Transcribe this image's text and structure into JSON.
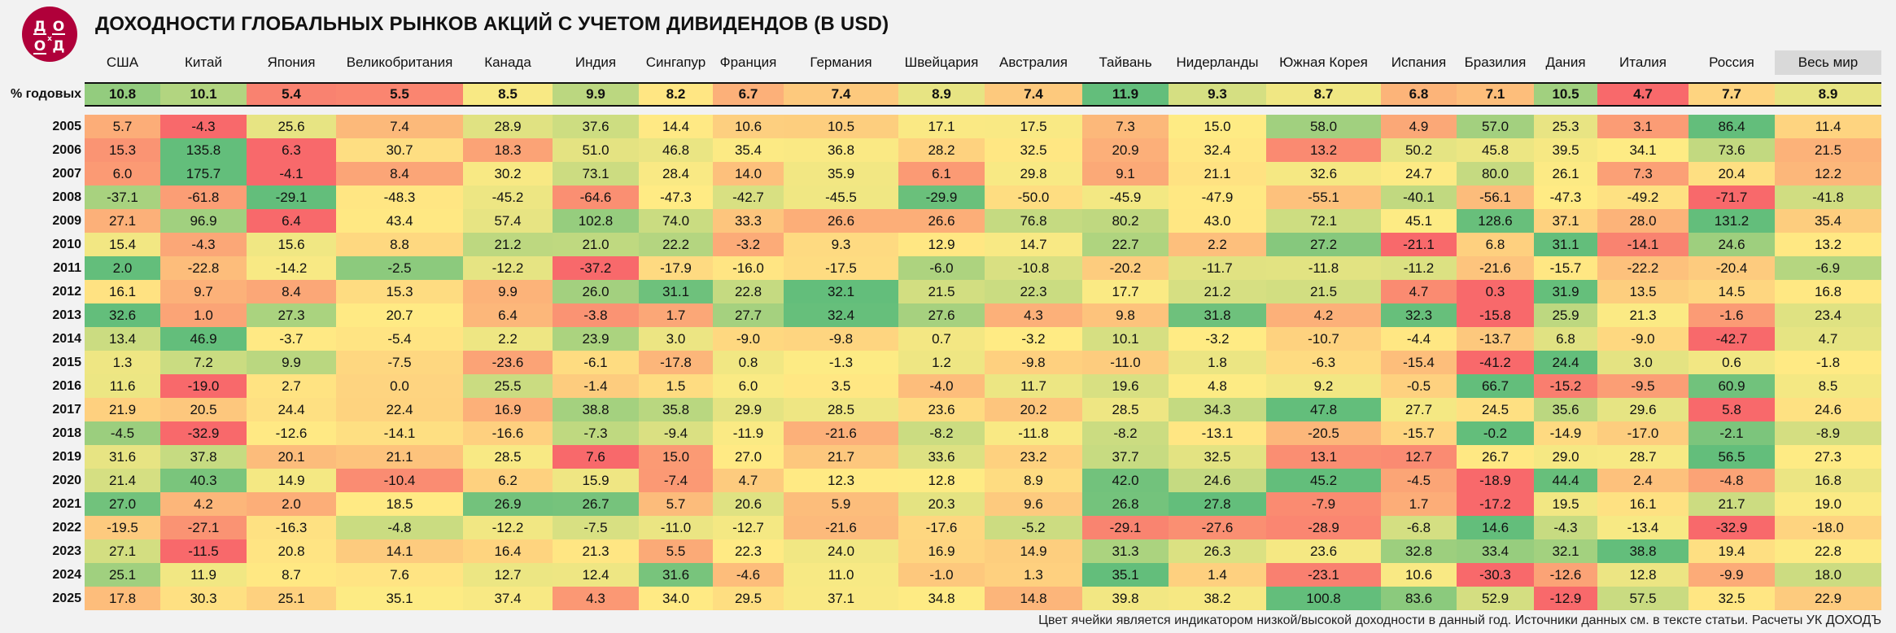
{
  "title": "ДОХОДНОСТИ ГЛОБАЛЬНЫХ РЫНКОВ АКЦИЙ С УЧЕТОМ ДИВИДЕНДОВ (В USD)",
  "logo_text": "ДО ОД",
  "footer": "Цвет ячейки является индикатором низкой/высокой доходности в данный год. Источники данных см. в тексте статьи. Расчеты УК ДОХОДЪ",
  "colors": {
    "low": "#F8696B",
    "mid": "#FFEB84",
    "high": "#63BE7B",
    "logo": "#B0003A",
    "world_header_bg": "#D9D9D9"
  },
  "chart_data": {
    "type": "heatmap",
    "title": "ДОХОДНОСТИ ГЛОБАЛЬНЫХ РЫНКОВ АКЦИЙ С УЧЕТОМ ДИВИДЕНДОВ (В USD)",
    "color_scale": "per-row red-yellow-green (low to high)",
    "columns": [
      "США",
      "Китай",
      "Япония",
      "Великобритания",
      "Канада",
      "Индия",
      "Сингапур",
      "Франция",
      "Германия",
      "Швейцария",
      "Австралия",
      "Тайвань",
      "Нидерланды",
      "Южная Корея",
      "Испания",
      "Бразилия",
      "Дания",
      "Италия",
      "Россия",
      "Весь мир"
    ],
    "average_row": {
      "label": "% годовых",
      "values": [
        10.8,
        10.1,
        5.4,
        5.5,
        8.5,
        9.9,
        8.2,
        6.7,
        7.4,
        8.9,
        7.4,
        11.9,
        9.3,
        8.7,
        6.8,
        7.1,
        10.5,
        4.7,
        7.7,
        8.9
      ]
    },
    "rows": [
      {
        "year": "2005",
        "values": [
          5.7,
          -4.3,
          25.6,
          7.4,
          28.9,
          37.6,
          14.4,
          10.6,
          10.5,
          17.1,
          17.5,
          7.3,
          15.0,
          58.0,
          4.9,
          57.0,
          25.3,
          3.1,
          86.4,
          11.4
        ]
      },
      {
        "year": "2006",
        "values": [
          15.3,
          135.8,
          6.3,
          30.7,
          18.3,
          51.0,
          46.8,
          35.4,
          36.8,
          28.2,
          32.5,
          20.9,
          32.4,
          13.2,
          50.2,
          45.8,
          39.5,
          34.1,
          73.6,
          21.5
        ]
      },
      {
        "year": "2007",
        "values": [
          6.0,
          175.7,
          -4.1,
          8.4,
          30.2,
          73.1,
          28.4,
          14.0,
          35.9,
          6.1,
          29.8,
          9.1,
          21.1,
          32.6,
          24.7,
          80.0,
          26.1,
          7.3,
          20.4,
          12.2
        ]
      },
      {
        "year": "2008",
        "values": [
          -37.1,
          -61.8,
          -29.1,
          -48.3,
          -45.2,
          -64.6,
          -47.3,
          -42.7,
          -45.5,
          -29.9,
          -50.0,
          -45.9,
          -47.9,
          -55.1,
          -40.1,
          -56.1,
          -47.3,
          -49.2,
          -71.7,
          -41.8
        ]
      },
      {
        "year": "2009",
        "values": [
          27.1,
          96.9,
          6.4,
          43.4,
          57.4,
          102.8,
          74.0,
          33.3,
          26.6,
          26.6,
          76.8,
          80.2,
          43.0,
          72.1,
          45.1,
          128.6,
          37.1,
          28.0,
          131.2,
          35.4
        ]
      },
      {
        "year": "2010",
        "values": [
          15.4,
          -4.3,
          15.6,
          8.8,
          21.2,
          21.0,
          22.2,
          -3.2,
          9.3,
          12.9,
          14.7,
          22.7,
          2.2,
          27.2,
          -21.1,
          6.8,
          31.1,
          -14.1,
          24.6,
          13.2
        ]
      },
      {
        "year": "2011",
        "values": [
          2.0,
          -22.8,
          -14.2,
          -2.5,
          -12.2,
          -37.2,
          -17.9,
          -16.0,
          -17.5,
          -6.0,
          -10.8,
          -20.2,
          -11.7,
          -11.8,
          -11.2,
          -21.6,
          -15.7,
          -22.2,
          -20.4,
          -6.9
        ]
      },
      {
        "year": "2012",
        "values": [
          16.1,
          9.7,
          8.4,
          15.3,
          9.9,
          26.0,
          31.1,
          22.8,
          32.1,
          21.5,
          22.3,
          17.7,
          21.2,
          21.5,
          4.7,
          0.3,
          31.9,
          13.5,
          14.5,
          16.8
        ]
      },
      {
        "year": "2013",
        "values": [
          32.6,
          1.0,
          27.3,
          20.7,
          6.4,
          -3.8,
          1.7,
          27.7,
          32.4,
          27.6,
          4.3,
          9.8,
          31.8,
          4.2,
          32.3,
          -15.8,
          25.9,
          21.3,
          -1.6,
          23.4
        ]
      },
      {
        "year": "2014",
        "values": [
          13.4,
          46.9,
          -3.7,
          -5.4,
          2.2,
          23.9,
          3.0,
          -9.0,
          -9.8,
          0.7,
          -3.2,
          10.1,
          -3.2,
          -10.7,
          -4.4,
          -13.7,
          6.8,
          -9.0,
          -42.7,
          4.7
        ]
      },
      {
        "year": "2015",
        "values": [
          1.3,
          7.2,
          9.9,
          -7.5,
          -23.6,
          -6.1,
          -17.8,
          0.8,
          -1.3,
          1.2,
          -9.8,
          -11.0,
          1.8,
          -6.3,
          -15.4,
          -41.2,
          24.4,
          3.0,
          0.6,
          -1.8
        ]
      },
      {
        "year": "2016",
        "values": [
          11.6,
          -19.0,
          2.7,
          0.0,
          25.5,
          -1.4,
          1.5,
          6.0,
          3.5,
          -4.0,
          11.7,
          19.6,
          4.8,
          9.2,
          -0.5,
          66.7,
          -15.2,
          -9.5,
          60.9,
          8.5
        ]
      },
      {
        "year": "2017",
        "values": [
          21.9,
          20.5,
          24.4,
          22.4,
          16.9,
          38.8,
          35.8,
          29.9,
          28.5,
          23.6,
          20.2,
          28.5,
          34.3,
          47.8,
          27.7,
          24.5,
          35.6,
          29.6,
          5.8,
          24.6
        ]
      },
      {
        "year": "2018",
        "values": [
          -4.5,
          -32.9,
          -12.6,
          -14.1,
          -16.6,
          -7.3,
          -9.4,
          -11.9,
          -21.6,
          -8.2,
          -11.8,
          -8.2,
          -13.1,
          -20.5,
          -15.7,
          -0.2,
          -14.9,
          -17.0,
          -2.1,
          -8.9
        ]
      },
      {
        "year": "2019",
        "values": [
          31.6,
          37.8,
          20.1,
          21.1,
          28.5,
          7.6,
          15.0,
          27.0,
          21.7,
          33.6,
          23.2,
          37.7,
          32.5,
          13.1,
          12.7,
          26.7,
          29.0,
          28.7,
          56.5,
          27.3
        ]
      },
      {
        "year": "2020",
        "values": [
          21.4,
          40.3,
          14.9,
          -10.4,
          6.2,
          15.9,
          -7.4,
          4.7,
          12.3,
          12.8,
          8.9,
          42.0,
          24.6,
          45.2,
          -4.5,
          -18.9,
          44.4,
          2.4,
          -4.8,
          16.8
        ]
      },
      {
        "year": "2021",
        "values": [
          27.0,
          4.2,
          2.0,
          18.5,
          26.9,
          26.7,
          5.7,
          20.6,
          5.9,
          20.3,
          9.6,
          26.8,
          27.8,
          -7.9,
          1.7,
          -17.2,
          19.5,
          16.1,
          21.7,
          19.0
        ]
      },
      {
        "year": "2022",
        "values": [
          -19.5,
          -27.1,
          -16.3,
          -4.8,
          -12.2,
          -7.5,
          -11.0,
          -12.7,
          -21.6,
          -17.6,
          -5.2,
          -29.1,
          -27.6,
          -28.9,
          -6.8,
          14.6,
          -4.3,
          -13.4,
          -32.9,
          -18.0
        ]
      },
      {
        "year": "2023",
        "values": [
          27.1,
          -11.5,
          20.8,
          14.1,
          16.4,
          21.3,
          5.5,
          22.3,
          24.0,
          16.9,
          14.9,
          31.3,
          26.3,
          23.6,
          32.8,
          33.4,
          32.1,
          38.8,
          19.4,
          22.8
        ]
      },
      {
        "year": "2024",
        "values": [
          25.1,
          11.9,
          8.7,
          7.6,
          12.7,
          12.4,
          31.6,
          -4.6,
          11.0,
          -1.0,
          1.3,
          35.1,
          1.4,
          -23.1,
          10.6,
          -30.3,
          -12.6,
          12.8,
          -9.9,
          18.0
        ]
      },
      {
        "year": "2025",
        "values": [
          17.8,
          30.3,
          25.1,
          35.1,
          37.4,
          4.3,
          34.0,
          29.5,
          37.1,
          34.8,
          14.8,
          39.8,
          38.2,
          100.8,
          83.6,
          52.9,
          -12.9,
          57.5,
          32.5,
          22.9
        ]
      }
    ]
  }
}
